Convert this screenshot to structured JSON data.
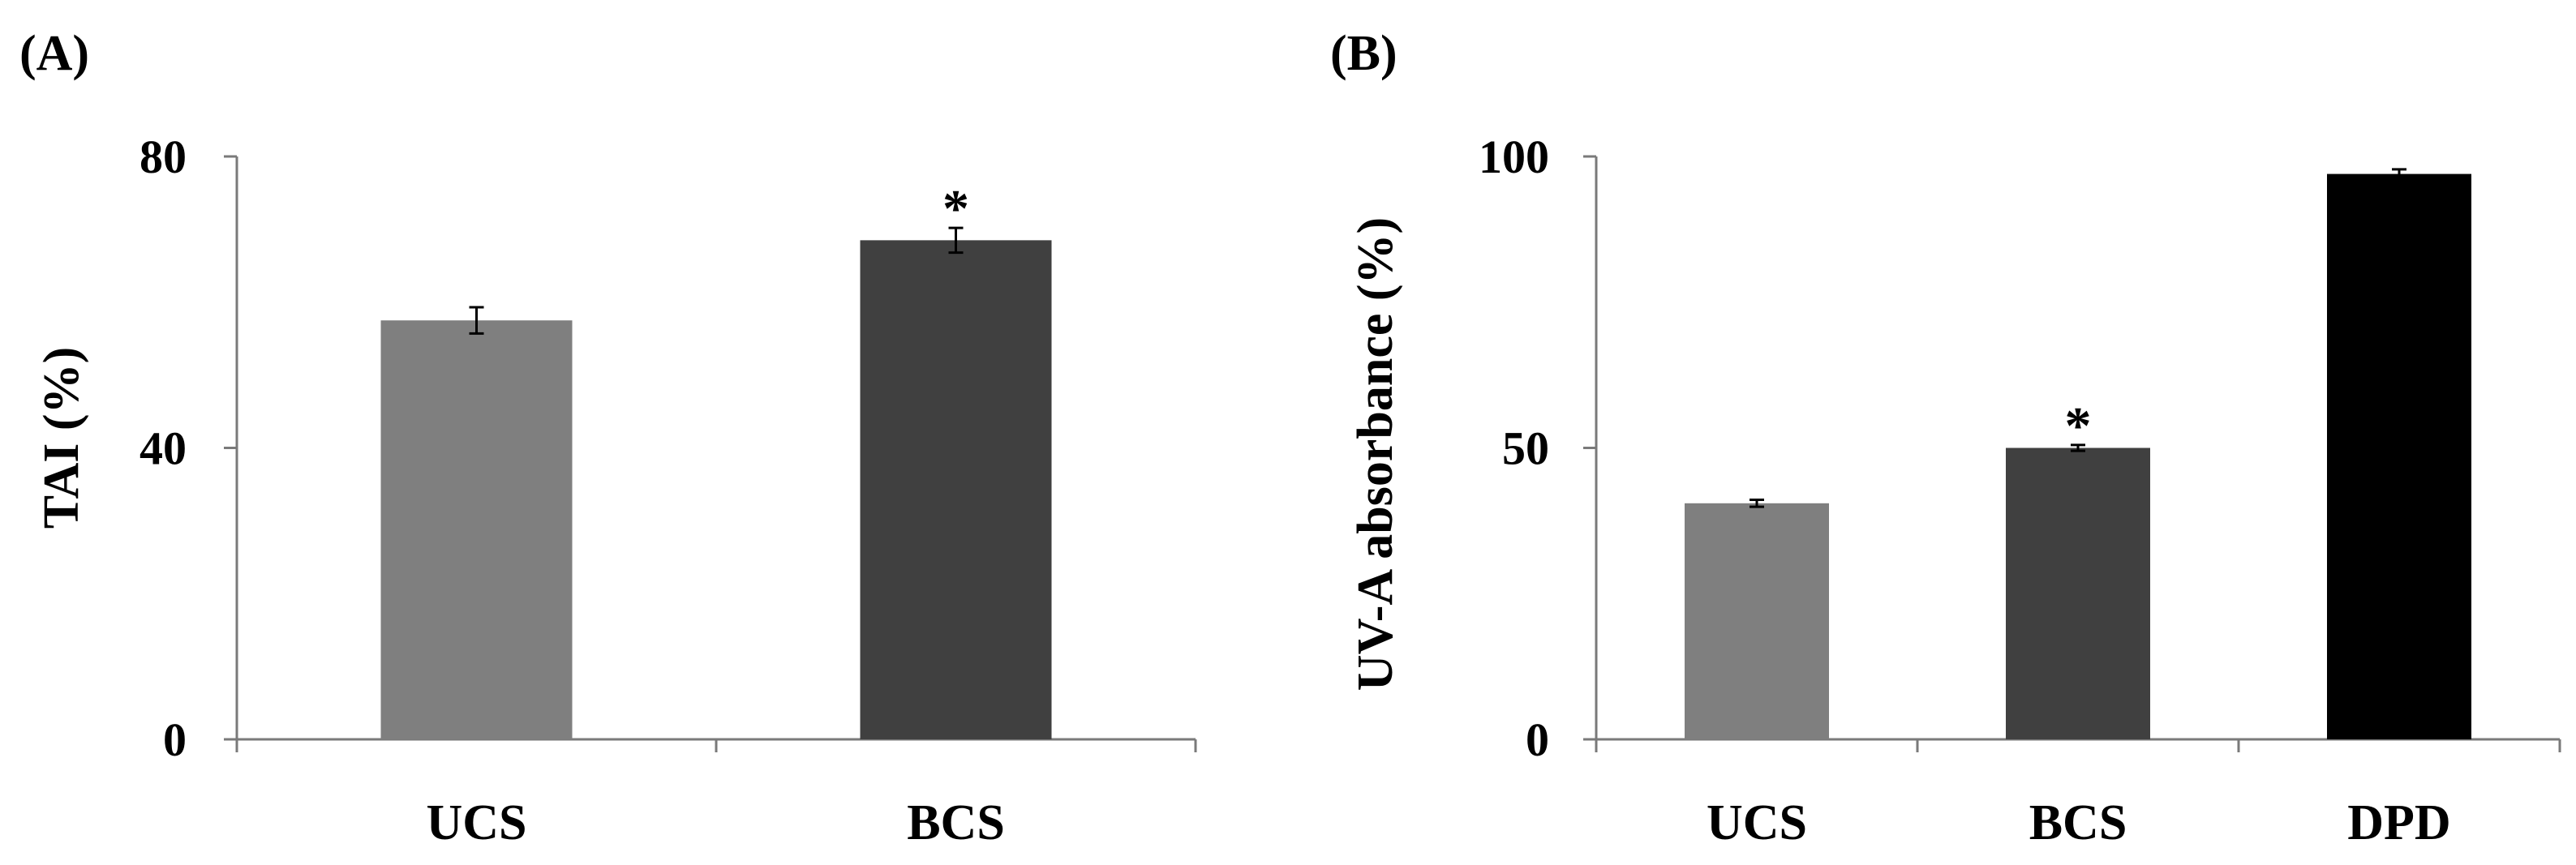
{
  "chart_data": [
    {
      "type": "bar",
      "panel_label": "(A)",
      "categories": [
        "UCS",
        "BCS"
      ],
      "values": [
        57.5,
        68.5
      ],
      "errors": [
        1.8,
        1.7
      ],
      "significance": [
        "",
        "*"
      ],
      "bar_colors": [
        "#7f7f7f",
        "#404040"
      ],
      "ylabel": "TAI (%)",
      "xlabel": "",
      "title": "",
      "ylim": [
        0,
        80
      ],
      "yticks": [
        0,
        40,
        80
      ],
      "grid": false
    },
    {
      "type": "bar",
      "panel_label": "(B)",
      "categories": [
        "UCS",
        "BCS",
        "DPD"
      ],
      "values": [
        40.5,
        50.0,
        97.0
      ],
      "errors": [
        0.6,
        0.5,
        0.8
      ],
      "significance": [
        "",
        "*",
        ""
      ],
      "bar_colors": [
        "#7f7f7f",
        "#404040",
        "#000000"
      ],
      "ylabel": "UV-A absorbance (%)",
      "xlabel": "",
      "title": "",
      "ylim": [
        0,
        100
      ],
      "yticks": [
        0,
        50,
        100
      ],
      "grid": false
    }
  ]
}
